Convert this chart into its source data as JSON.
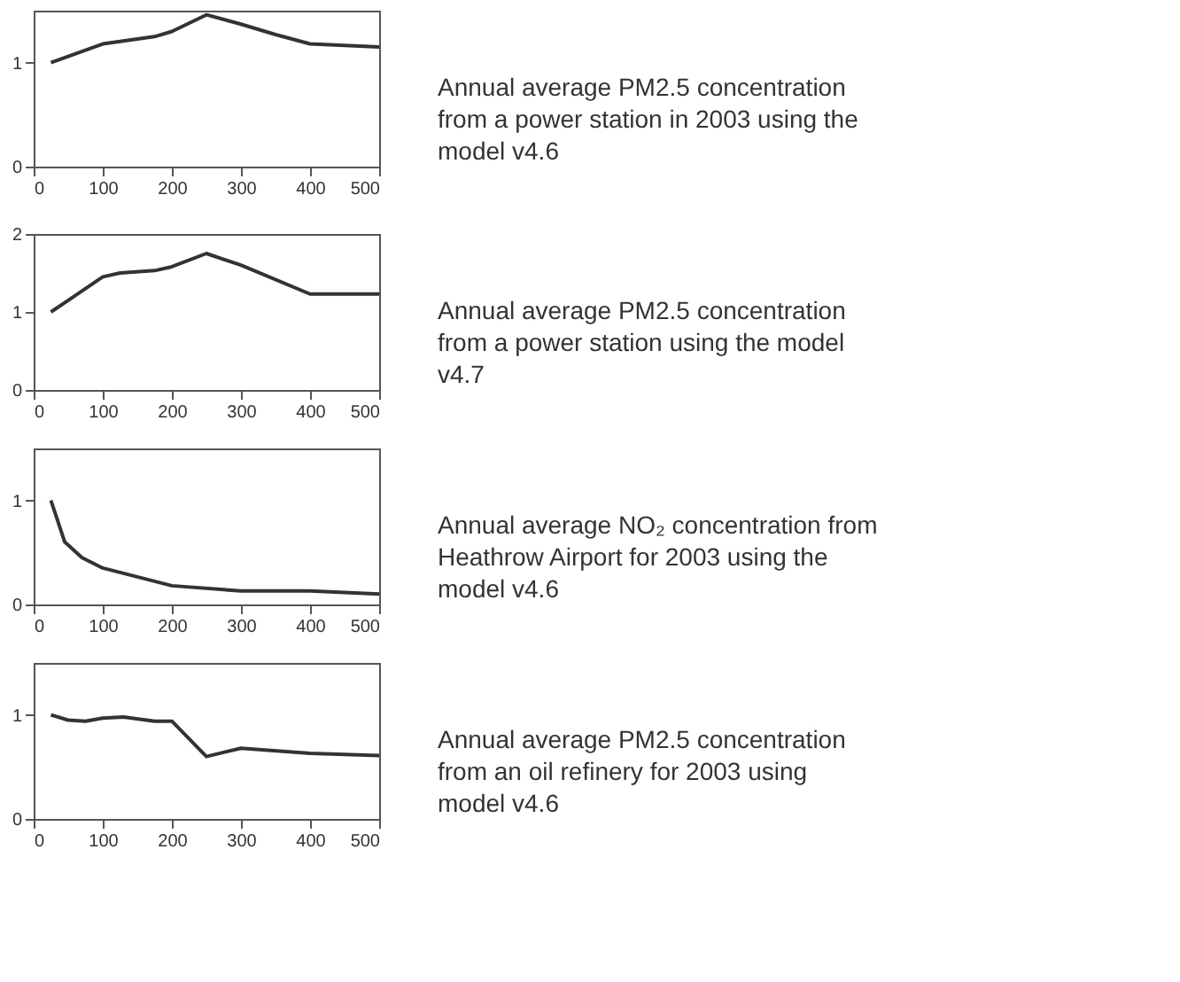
{
  "chart_data": [
    {
      "type": "line",
      "x": [
        25,
        100,
        175,
        200,
        250,
        300,
        350,
        400,
        500
      ],
      "values": [
        1.0,
        1.18,
        1.25,
        1.3,
        1.46,
        1.37,
        1.27,
        1.18,
        1.15
      ],
      "color": "#333333",
      "xlim": [
        0,
        500
      ],
      "ylim": [
        0,
        1.5
      ],
      "xticks": [
        0,
        100,
        200,
        300,
        400,
        500
      ],
      "yticks": [
        0,
        1
      ],
      "annotations": [
        "Annual average PM2.5 concentration from a power station in 2003 using the model v4.6"
      ]
    },
    {
      "type": "line",
      "x": [
        25,
        50,
        100,
        125,
        175,
        200,
        250,
        300,
        400,
        500
      ],
      "values": [
        1.0,
        1.15,
        1.45,
        1.5,
        1.53,
        1.58,
        1.75,
        1.6,
        1.23,
        1.23
      ],
      "color": "#333333",
      "xlim": [
        0,
        500
      ],
      "ylim": [
        0,
        2
      ],
      "xticks": [
        0,
        100,
        200,
        300,
        400,
        500
      ],
      "yticks": [
        0,
        1,
        2
      ],
      "annotations": [
        "Annual average PM2.5 concentration from a power station using the model v4.7"
      ]
    },
    {
      "type": "line",
      "x": [
        25,
        45,
        70,
        100,
        200,
        300,
        400,
        500
      ],
      "values": [
        1.0,
        0.6,
        0.45,
        0.35,
        0.18,
        0.13,
        0.13,
        0.1
      ],
      "color": "#333333",
      "xlim": [
        0,
        500
      ],
      "ylim": [
        0,
        1.5
      ],
      "xticks": [
        0,
        100,
        200,
        300,
        400,
        500
      ],
      "yticks": [
        0,
        1
      ],
      "annotations": [
        "Annual average NO₂ concentration from Heathrow Airport for 2003 using the model v4.6"
      ]
    },
    {
      "type": "line",
      "x": [
        25,
        50,
        75,
        100,
        130,
        175,
        200,
        250,
        300,
        400,
        500
      ],
      "values": [
        1.0,
        0.95,
        0.94,
        0.97,
        0.98,
        0.94,
        0.94,
        0.6,
        0.68,
        0.63,
        0.61
      ],
      "color": "#333333",
      "xlim": [
        0,
        500
      ],
      "ylim": [
        0,
        1.5
      ],
      "xticks": [
        0,
        100,
        200,
        300,
        400,
        500
      ],
      "yticks": [
        0,
        1
      ],
      "annotations": [
        "Annual average PM2.5 concentration from an oil refinery for 2003 using model v4.6"
      ]
    }
  ]
}
